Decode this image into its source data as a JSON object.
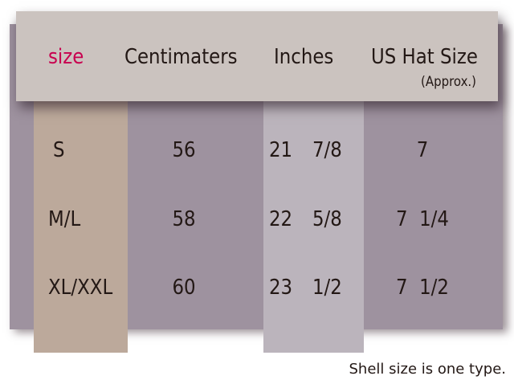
{
  "header": {
    "size": "size",
    "centimeters": "Centimaters",
    "inches": "Inches",
    "us_hat_size": "US Hat Size",
    "approx": "(Approx.)"
  },
  "rows": [
    {
      "size": "S",
      "cm": "56",
      "inches_whole": "21",
      "inches_frac": "7/8",
      "us": "7"
    },
    {
      "size": "M/L",
      "cm": "58",
      "inches_whole": "22",
      "inches_frac": "5/8",
      "us": "7  1/4"
    },
    {
      "size": "XL/XXL",
      "cm": "60",
      "inches_whole": "23",
      "inches_frac": "1/2",
      "us": "7  1/2"
    }
  ],
  "note": "Shell size is one type.",
  "colors": {
    "accent": "#c8004f",
    "background": "#9e929f",
    "size_column": "#bca99b",
    "inches_column": "#bbb4bc",
    "header": "#cbc3bf"
  }
}
